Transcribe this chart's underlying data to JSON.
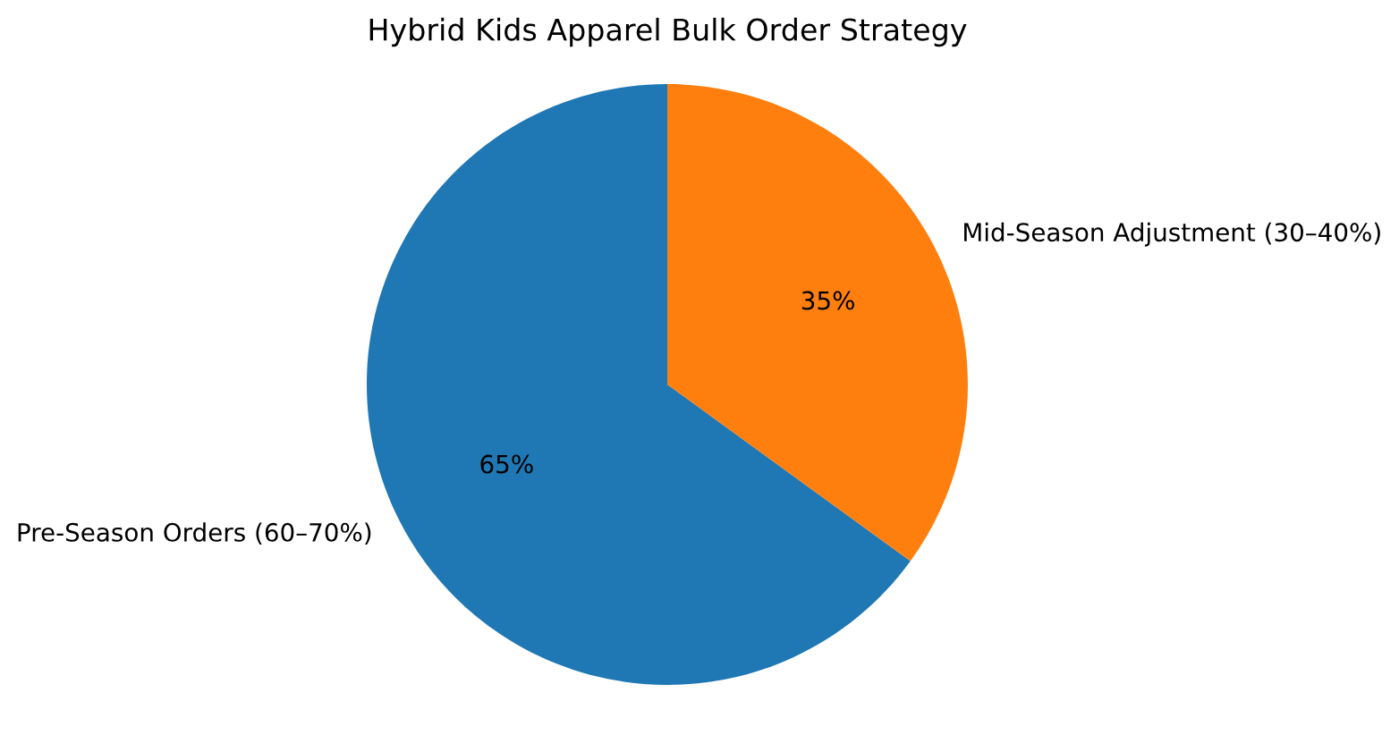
{
  "chart_data": {
    "type": "pie",
    "title": "Hybrid Kids Apparel Bulk Order Strategy",
    "categories": [
      "Pre-Season Orders (60–70%)",
      "Mid-Season Adjustment (30–40%)"
    ],
    "values": [
      65,
      35
    ],
    "colors": [
      "#1f77b4",
      "#ff7f0e"
    ],
    "value_labels": [
      "65%",
      "35%"
    ]
  }
}
